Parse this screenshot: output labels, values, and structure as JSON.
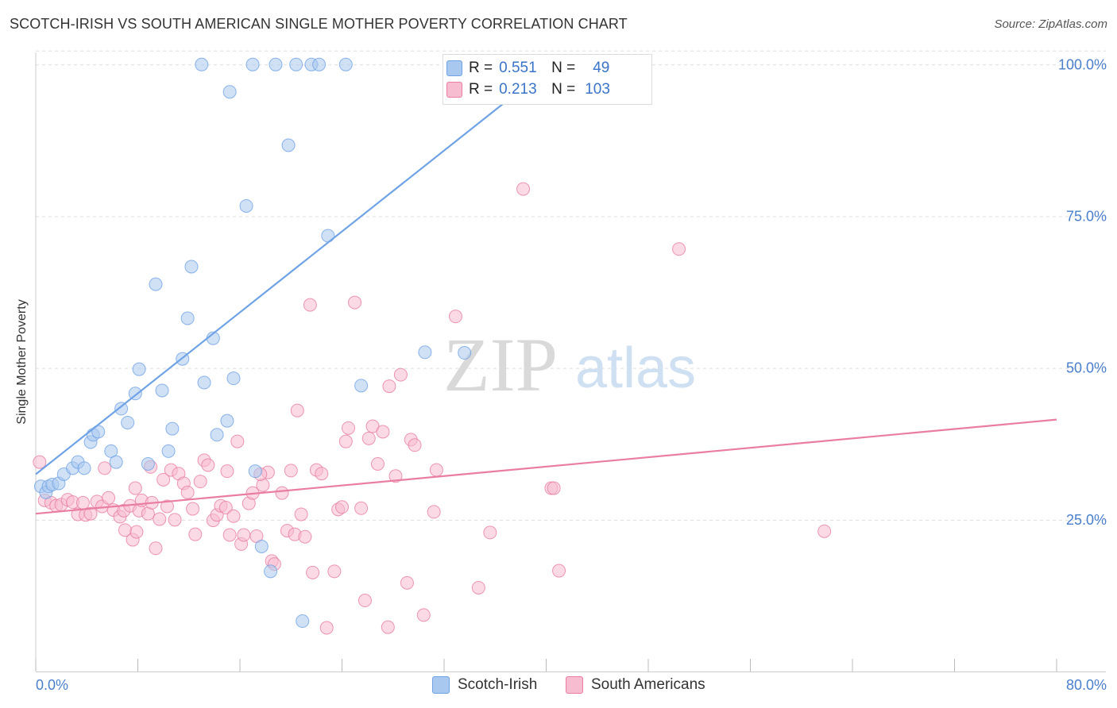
{
  "title": "SCOTCH-IRISH VS SOUTH AMERICAN SINGLE MOTHER POVERTY CORRELATION CHART",
  "source": "Source: ZipAtlas.com",
  "watermark": {
    "zip": "ZIP",
    "atlas": "atlas"
  },
  "legend": {
    "rows": [
      {
        "r_label": "R =",
        "r_value": "0.551",
        "n_label": "N =",
        "n_value": "49",
        "color": "#a9c8ef"
      },
      {
        "r_label": "R =",
        "r_value": "0.213",
        "n_label": "N =",
        "n_value": "103",
        "color": "#f7bcd0"
      }
    ]
  },
  "bottom_legend": {
    "series1": {
      "label": "Scotch-Irish",
      "color": "#a9c8ef"
    },
    "series2": {
      "label": "South Americans",
      "color": "#f7bcd0"
    }
  },
  "chart_data": {
    "type": "scatter",
    "title": "SCOTCH-IRISH VS SOUTH AMERICAN SINGLE MOTHER POVERTY CORRELATION CHART",
    "xlabel": "",
    "ylabel": "Single Mother Poverty",
    "xlim": [
      0,
      80
    ],
    "ylim": [
      0,
      100
    ],
    "x_tick_labels": [
      "0.0%",
      "80.0%"
    ],
    "y_tick_labels": [
      "25.0%",
      "50.0%",
      "75.0%",
      "100.0%"
    ],
    "y_ticks": [
      25,
      50,
      75,
      100
    ],
    "grid": true,
    "legend_placement": "top-center",
    "series": [
      {
        "name": "Scotch-Irish",
        "color": "#6fa3e6",
        "fill": "#a9c8ef",
        "trend": {
          "x": [
            0,
            40.5
          ],
          "y": [
            32.5,
            100
          ]
        },
        "points": [
          [
            0.4,
            30.5
          ],
          [
            0.8,
            29.5
          ],
          [
            1.0,
            30.5
          ],
          [
            1.3,
            30.8
          ],
          [
            1.8,
            31
          ],
          [
            2.2,
            32.5
          ],
          [
            2.9,
            33.5
          ],
          [
            3.3,
            34.5
          ],
          [
            3.8,
            33.5
          ],
          [
            4.3,
            37.8
          ],
          [
            4.5,
            39
          ],
          [
            4.9,
            39.5
          ],
          [
            5.9,
            36.3
          ],
          [
            6.3,
            34.5
          ],
          [
            6.7,
            43.3
          ],
          [
            7.2,
            41
          ],
          [
            7.8,
            45.8
          ],
          [
            8.1,
            49.8
          ],
          [
            8.8,
            34.2
          ],
          [
            9.4,
            63.8
          ],
          [
            9.9,
            46.3
          ],
          [
            10.4,
            36.3
          ],
          [
            10.7,
            40
          ],
          [
            11.5,
            51.5
          ],
          [
            11.9,
            58.2
          ],
          [
            12.2,
            66.7
          ],
          [
            13.2,
            47.6
          ],
          [
            13.9,
            54.9
          ],
          [
            14.2,
            39
          ],
          [
            15.0,
            41.3
          ],
          [
            15.5,
            48.3
          ],
          [
            16.5,
            76.7
          ],
          [
            17.2,
            33
          ],
          [
            17.7,
            20.6
          ],
          [
            18.4,
            16.5
          ],
          [
            18.8,
            100
          ],
          [
            19.8,
            86.7
          ],
          [
            20.4,
            100
          ],
          [
            20.9,
            8.3
          ],
          [
            21.6,
            100
          ],
          [
            22.2,
            100
          ],
          [
            22.9,
            71.8
          ],
          [
            24.3,
            100
          ],
          [
            25.5,
            47.1
          ],
          [
            30.5,
            52.6
          ],
          [
            33.6,
            52.5
          ],
          [
            17.0,
            100
          ],
          [
            15.2,
            95.5
          ],
          [
            13.0,
            100
          ]
        ]
      },
      {
        "name": "South Americans",
        "color": "#e97da2",
        "fill": "#f7bcd0",
        "trend": {
          "x": [
            0,
            80
          ],
          "y": [
            26,
            41.5
          ]
        },
        "points": [
          [
            0.3,
            34.5
          ],
          [
            0.7,
            28.2
          ],
          [
            1.2,
            27.8
          ],
          [
            1.6,
            27.3
          ],
          [
            2.0,
            27.5
          ],
          [
            2.5,
            28.3
          ],
          [
            2.9,
            27.9
          ],
          [
            3.3,
            25.9
          ],
          [
            3.7,
            27.8
          ],
          [
            3.9,
            25.8
          ],
          [
            4.3,
            26
          ],
          [
            4.8,
            28.0
          ],
          [
            5.2,
            27.2
          ],
          [
            5.4,
            33.5
          ],
          [
            5.7,
            28.6
          ],
          [
            6.1,
            26.6
          ],
          [
            6.6,
            25.5
          ],
          [
            6.9,
            26.5
          ],
          [
            7.0,
            23.3
          ],
          [
            7.4,
            27.3
          ],
          [
            7.6,
            21.7
          ],
          [
            7.9,
            23
          ],
          [
            8.1,
            26.5
          ],
          [
            8.3,
            28.2
          ],
          [
            8.8,
            26.0
          ],
          [
            9.1,
            27.8
          ],
          [
            9.4,
            20.3
          ],
          [
            9.7,
            25.1
          ],
          [
            10.0,
            31.6
          ],
          [
            10.3,
            27.2
          ],
          [
            10.6,
            33.2
          ],
          [
            10.9,
            25
          ],
          [
            11.2,
            32.6
          ],
          [
            11.6,
            31
          ],
          [
            11.9,
            29.5
          ],
          [
            12.3,
            26.8
          ],
          [
            12.5,
            22.6
          ],
          [
            12.9,
            31.3
          ],
          [
            13.2,
            34.8
          ],
          [
            13.5,
            34
          ],
          [
            13.9,
            24.9
          ],
          [
            14.2,
            25.8
          ],
          [
            14.5,
            27.3
          ],
          [
            14.9,
            27
          ],
          [
            15.2,
            22.5
          ],
          [
            15.5,
            25.6
          ],
          [
            15.8,
            37.9
          ],
          [
            16.1,
            21
          ],
          [
            16.3,
            22.5
          ],
          [
            16.7,
            27.7
          ],
          [
            17.0,
            29.4
          ],
          [
            17.3,
            22.3
          ],
          [
            17.8,
            30.7
          ],
          [
            18.2,
            32.8
          ],
          [
            18.5,
            18.2
          ],
          [
            18.7,
            17.7
          ],
          [
            19.3,
            29.4
          ],
          [
            19.7,
            23.2
          ],
          [
            20.0,
            33.1
          ],
          [
            20.3,
            22.6
          ],
          [
            20.5,
            43
          ],
          [
            20.8,
            25.9
          ],
          [
            21.1,
            22.2
          ],
          [
            21.5,
            60.4
          ],
          [
            21.7,
            16.3
          ],
          [
            22.0,
            33.2
          ],
          [
            22.4,
            32.6
          ],
          [
            22.8,
            7.2
          ],
          [
            23.4,
            16.5
          ],
          [
            23.7,
            26.7
          ],
          [
            24.0,
            27.1
          ],
          [
            24.3,
            37.9
          ],
          [
            24.5,
            40.1
          ],
          [
            25.0,
            60.8
          ],
          [
            25.5,
            26.9
          ],
          [
            25.8,
            11.7
          ],
          [
            26.1,
            38.4
          ],
          [
            26.4,
            40.4
          ],
          [
            26.8,
            34.2
          ],
          [
            27.2,
            39.5
          ],
          [
            27.6,
            7.3
          ],
          [
            27.7,
            47
          ],
          [
            28.2,
            32.2
          ],
          [
            28.6,
            48.9
          ],
          [
            29.1,
            14.6
          ],
          [
            29.4,
            38.2
          ],
          [
            29.7,
            37.3
          ],
          [
            30.4,
            9.3
          ],
          [
            31.4,
            33.2
          ],
          [
            31.2,
            26.3
          ],
          [
            32.9,
            58.5
          ],
          [
            34.7,
            13.8
          ],
          [
            35.6,
            22.9
          ],
          [
            38.2,
            79.5
          ],
          [
            40.4,
            30.2
          ],
          [
            40.6,
            30.2
          ],
          [
            41.0,
            16.6
          ],
          [
            50.4,
            69.6
          ],
          [
            61.8,
            23.1
          ],
          [
            17.6,
            32.5
          ],
          [
            15.0,
            33
          ],
          [
            7.8,
            30.2
          ],
          [
            9.0,
            33.7
          ]
        ]
      }
    ]
  }
}
